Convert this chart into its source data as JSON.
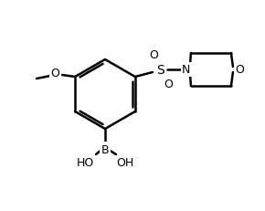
{
  "background_color": "#ffffff",
  "line_color": "#000000",
  "line_width": 1.8,
  "font_size": 9,
  "figsize": [
    2.9,
    2.32
  ],
  "dpi": 100,
  "labels": {
    "O_methoxy": "O",
    "methoxy": "O",
    "B": "B",
    "HO_left": "HO",
    "HO_right": "OH",
    "S": "S",
    "O_top": "O",
    "O_bottom": "O",
    "N": "N",
    "O_ring": "O"
  }
}
